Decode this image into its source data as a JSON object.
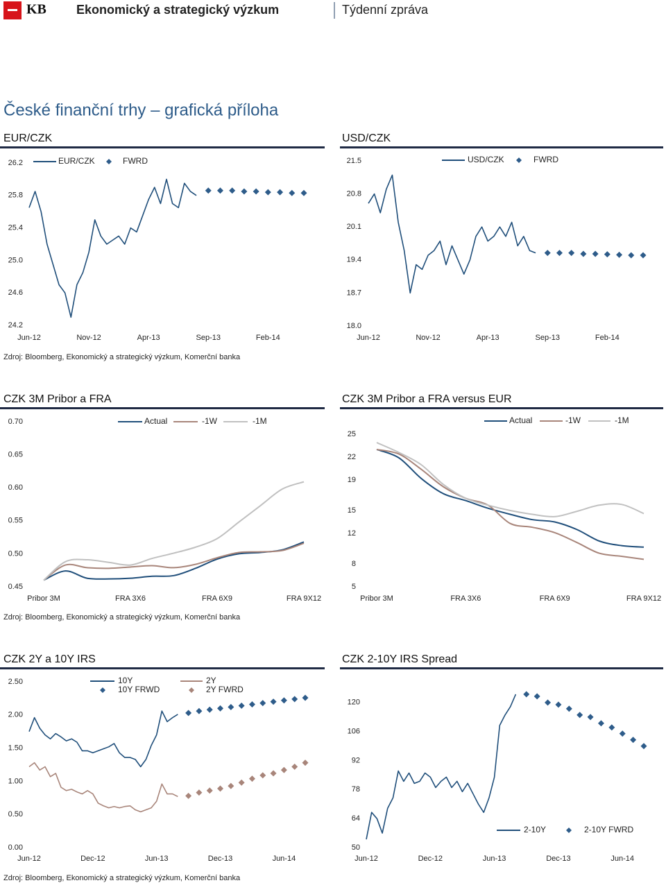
{
  "header": {
    "logo": "KB",
    "title": "Ekonomický a strategický výzkum",
    "report": "Týdenní zpráva"
  },
  "section_title": "České finanční trhy – grafická příloha",
  "sources": [
    "Zdroj: Bloomberg, Ekonomický a strategický výzkum, Komerční banka",
    "Zdroj: Bloomberg, Ekonomický a strategický výzkum, Komerční banka",
    "Zdroj: Bloomberg, Ekonomický a strategický výzkum, Komerční banka"
  ],
  "chart_data": [
    {
      "type": "line",
      "title": "EUR/CZK",
      "categories": [
        "Jun-12",
        null,
        null,
        null,
        null,
        null,
        null,
        null,
        null,
        null,
        "Nov-12",
        null,
        null,
        null,
        null,
        null,
        null,
        null,
        null,
        null,
        "Apr-13",
        null,
        null,
        null,
        null,
        null,
        null,
        null,
        null,
        null,
        "Sep-13",
        null,
        null,
        null,
        null,
        null,
        null,
        null,
        null,
        null,
        "Feb-14",
        null,
        null,
        null,
        null,
        null,
        null
      ],
      "ylim": [
        24.2,
        26.2
      ],
      "yticks": [
        24.2,
        24.6,
        {
          "value": 25,
          "label": "25.0"
        },
        25.4,
        25.8,
        26.2
      ],
      "series": [
        {
          "name": "EUR/CZK",
          "color": "#1f4e7a",
          "style": "line",
          "values": [
            25.65,
            25.85,
            25.6,
            25.2,
            24.95,
            24.7,
            24.6,
            24.3,
            24.7,
            24.85,
            25.1,
            25.5,
            25.3,
            25.2,
            25.25,
            25.3,
            25.2,
            25.4,
            25.35,
            25.55,
            25.75,
            25.9,
            25.7,
            26.0,
            25.7,
            25.65,
            25.95,
            25.85,
            25.8,
            null,
            null,
            null,
            null,
            null,
            null,
            null,
            null,
            null,
            null,
            null,
            null,
            null,
            null,
            null,
            null,
            null,
            null
          ]
        },
        {
          "name": "FWRD",
          "color": "#2e5c8a",
          "style": "marker",
          "values": [
            null,
            null,
            null,
            null,
            null,
            null,
            null,
            null,
            null,
            null,
            null,
            null,
            null,
            null,
            null,
            null,
            null,
            null,
            null,
            null,
            null,
            null,
            null,
            null,
            null,
            null,
            null,
            null,
            null,
            null,
            25.86,
            null,
            25.86,
            null,
            25.86,
            null,
            25.85,
            null,
            25.85,
            null,
            25.84,
            null,
            25.84,
            null,
            25.83,
            null,
            25.83
          ]
        }
      ]
    },
    {
      "type": "line",
      "title": "USD/CZK",
      "categories": [
        "Jun-12",
        null,
        null,
        null,
        null,
        null,
        null,
        null,
        null,
        null,
        "Nov-12",
        null,
        null,
        null,
        null,
        null,
        null,
        null,
        null,
        null,
        "Apr-13",
        null,
        null,
        null,
        null,
        null,
        null,
        null,
        null,
        null,
        "Sep-13",
        null,
        null,
        null,
        null,
        null,
        null,
        null,
        null,
        null,
        "Feb-14",
        null,
        null,
        null,
        null,
        null,
        null
      ],
      "ylim": [
        18,
        21.5
      ],
      "yticks": [
        {
          "value": 18,
          "label": "18.0"
        },
        18.7,
        19.4,
        20.1,
        20.8,
        21.5
      ],
      "series": [
        {
          "name": "USD/CZK",
          "color": "#1f4e7a",
          "style": "line",
          "values": [
            20.6,
            20.8,
            20.4,
            20.9,
            21.2,
            20.2,
            19.6,
            18.7,
            19.3,
            19.2,
            19.5,
            19.6,
            19.8,
            19.3,
            19.7,
            19.4,
            19.1,
            19.4,
            19.9,
            20.1,
            19.8,
            19.9,
            20.1,
            19.9,
            20.2,
            19.7,
            19.9,
            19.6,
            19.55,
            null,
            null,
            null,
            null,
            null,
            null,
            null,
            null,
            null,
            null,
            null,
            null,
            null,
            null,
            null,
            null,
            null,
            null
          ]
        },
        {
          "name": "FWRD",
          "color": "#2e5c8a",
          "style": "marker",
          "values": [
            null,
            null,
            null,
            null,
            null,
            null,
            null,
            null,
            null,
            null,
            null,
            null,
            null,
            null,
            null,
            null,
            null,
            null,
            null,
            null,
            null,
            null,
            null,
            null,
            null,
            null,
            null,
            null,
            null,
            null,
            19.55,
            null,
            19.55,
            null,
            19.55,
            null,
            19.53,
            null,
            19.53,
            null,
            19.52,
            null,
            19.51,
            null,
            19.5,
            null,
            19.5
          ]
        }
      ]
    },
    {
      "type": "line",
      "title": "CZK 3M Pribor a FRA",
      "smooth": true,
      "categories": [
        "Pribor 3M",
        null,
        null,
        null,
        "FRA 3X6",
        null,
        null,
        null,
        "FRA 6X9",
        null,
        null,
        null,
        "FRA 9X12"
      ],
      "ylim": [
        0.45,
        0.7
      ],
      "yticks": [
        0.45,
        {
          "value": 0.5,
          "label": "0.50"
        },
        0.55,
        {
          "value": 0.6,
          "label": "0.60"
        },
        0.65,
        {
          "value": 0.7,
          "label": "0.70"
        }
      ],
      "series": [
        {
          "name": "Actual",
          "color": "#1f4e7a",
          "style": "line",
          "values": [
            0.46,
            0.474,
            0.463,
            0.462,
            0.463,
            0.466,
            0.467,
            0.478,
            0.492,
            0.5,
            0.502,
            0.506,
            0.518
          ]
        },
        {
          "name": "-1W",
          "color": "#a8857a",
          "style": "line",
          "values": [
            0.46,
            0.483,
            0.479,
            0.478,
            0.48,
            0.482,
            0.479,
            0.484,
            0.494,
            0.502,
            0.503,
            0.505,
            0.516
          ]
        },
        {
          "name": "-1M",
          "color": "#c0c0c0",
          "style": "line",
          "values": [
            0.46,
            0.488,
            0.491,
            0.487,
            0.483,
            0.493,
            0.501,
            0.51,
            0.523,
            0.548,
            0.573,
            0.598,
            0.609
          ]
        }
      ]
    },
    {
      "type": "line",
      "title": "CZK 3M Pribor a FRA versus EUR",
      "smooth": true,
      "categories": [
        "Pribor 3M",
        null,
        null,
        null,
        "FRA 3X6",
        null,
        null,
        null,
        "FRA 6X9",
        null,
        null,
        null,
        "FRA 9X12"
      ],
      "ylim": [
        5,
        25
      ],
      "yticks": [
        5,
        8,
        12,
        15,
        19,
        22,
        25
      ],
      "series": [
        {
          "name": "Actual",
          "color": "#1f4e7a",
          "style": "line",
          "values": [
            23.0,
            21.9,
            19.2,
            17.2,
            16.3,
            15.3,
            14.5,
            13.8,
            13.5,
            12.5,
            11.0,
            10.4,
            10.2
          ]
        },
        {
          "name": "-1W",
          "color": "#a8857a",
          "style": "line",
          "values": [
            23.0,
            22.4,
            20.4,
            18.1,
            16.6,
            15.7,
            13.3,
            12.8,
            12.1,
            10.8,
            9.4,
            9.0,
            8.6
          ]
        },
        {
          "name": "-1M",
          "color": "#c0c0c0",
          "style": "line",
          "values": [
            23.9,
            22.6,
            21.0,
            18.4,
            16.6,
            15.7,
            15.0,
            14.5,
            14.2,
            14.9,
            15.7,
            15.8,
            14.6
          ]
        }
      ]
    },
    {
      "type": "line",
      "title": "CZK 2Y a 10Y IRS",
      "categories": [
        "Jun-12",
        null,
        null,
        null,
        null,
        null,
        null,
        null,
        null,
        null,
        null,
        null,
        "Dec-12",
        null,
        null,
        null,
        null,
        null,
        null,
        null,
        null,
        null,
        null,
        null,
        "Jun-13",
        null,
        null,
        null,
        null,
        null,
        null,
        null,
        null,
        null,
        null,
        null,
        "Dec-13",
        null,
        null,
        null,
        null,
        null,
        null,
        null,
        null,
        null,
        null,
        null,
        "Jun-14",
        null,
        null,
        null,
        null
      ],
      "ylim": [
        0,
        2.5
      ],
      "yticks": [
        {
          "value": 0,
          "label": "0.00"
        },
        {
          "value": 0.5,
          "label": "0.50"
        },
        {
          "value": 1,
          "label": "1.00"
        },
        {
          "value": 1.5,
          "label": "1.50"
        },
        {
          "value": 2,
          "label": "2.00"
        },
        {
          "value": 2.5,
          "label": "2.50"
        }
      ],
      "series": [
        {
          "name": "10Y",
          "color": "#1f4e7a",
          "style": "line",
          "values": [
            1.75,
            1.96,
            1.8,
            1.7,
            1.64,
            1.72,
            1.67,
            1.61,
            1.64,
            1.59,
            1.46,
            1.46,
            1.43,
            1.46,
            1.49,
            1.52,
            1.57,
            1.43,
            1.36,
            1.36,
            1.33,
            1.22,
            1.33,
            1.54,
            1.7,
            2.06,
            1.9,
            1.96,
            2.01,
            null,
            null,
            null,
            null,
            null,
            null,
            null,
            null,
            null,
            null,
            null,
            null,
            null,
            null,
            null,
            null,
            null,
            null,
            null,
            null,
            null,
            null,
            null,
            null
          ]
        },
        {
          "name": "10Y FRWD",
          "color": "#2e5c8a",
          "style": "marker",
          "values": [
            null,
            null,
            null,
            null,
            null,
            null,
            null,
            null,
            null,
            null,
            null,
            null,
            null,
            null,
            null,
            null,
            null,
            null,
            null,
            null,
            null,
            null,
            null,
            null,
            null,
            null,
            null,
            null,
            null,
            null,
            2.03,
            null,
            2.06,
            null,
            2.08,
            null,
            2.1,
            null,
            2.12,
            null,
            2.14,
            null,
            2.16,
            null,
            2.18,
            null,
            2.2,
            null,
            2.22,
            null,
            2.24,
            null,
            2.26
          ]
        },
        {
          "name": "2Y",
          "color": "#a8857a",
          "style": "line",
          "values": [
            1.22,
            1.28,
            1.17,
            1.22,
            1.07,
            1.12,
            0.91,
            0.86,
            0.88,
            0.84,
            0.81,
            0.86,
            0.81,
            0.67,
            0.63,
            0.6,
            0.62,
            0.6,
            0.62,
            0.63,
            0.57,
            0.54,
            0.57,
            0.6,
            0.7,
            0.96,
            0.81,
            0.81,
            0.77,
            null,
            null,
            null,
            null,
            null,
            null,
            null,
            null,
            null,
            null,
            null,
            null,
            null,
            null,
            null,
            null,
            null,
            null,
            null,
            null,
            null,
            null,
            null,
            null
          ]
        },
        {
          "name": "2Y FWRD",
          "color": "#a8857a",
          "style": "marker",
          "values": [
            null,
            null,
            null,
            null,
            null,
            null,
            null,
            null,
            null,
            null,
            null,
            null,
            null,
            null,
            null,
            null,
            null,
            null,
            null,
            null,
            null,
            null,
            null,
            null,
            null,
            null,
            null,
            null,
            null,
            null,
            0.78,
            null,
            0.83,
            null,
            0.86,
            null,
            0.89,
            null,
            0.93,
            null,
            0.98,
            null,
            1.04,
            null,
            1.09,
            null,
            1.12,
            null,
            1.17,
            null,
            1.22,
            null,
            1.28
          ]
        }
      ]
    },
    {
      "type": "line",
      "title": "CZK 2-10Y IRS Spread",
      "categories": [
        "Jun-12",
        null,
        null,
        null,
        null,
        null,
        null,
        null,
        null,
        null,
        null,
        null,
        "Dec-12",
        null,
        null,
        null,
        null,
        null,
        null,
        null,
        null,
        null,
        null,
        null,
        "Jun-13",
        null,
        null,
        null,
        null,
        null,
        null,
        null,
        null,
        null,
        null,
        null,
        "Dec-13",
        null,
        null,
        null,
        null,
        null,
        null,
        null,
        null,
        null,
        null,
        null,
        "Jun-14",
        null,
        null,
        null,
        null
      ],
      "ylim": [
        50,
        134
      ],
      "yticks": [
        50,
        64,
        78,
        92,
        106,
        120
      ],
      "series": [
        {
          "name": "2-10Y",
          "color": "#1f4e7a",
          "style": "line",
          "values": [
            54,
            67,
            64,
            57,
            69,
            74,
            87,
            82,
            86,
            81,
            82,
            86,
            84,
            79,
            82,
            84,
            79,
            82,
            77,
            81,
            76,
            71,
            67,
            74,
            84,
            109,
            114,
            118,
            124,
            null,
            null,
            null,
            null,
            null,
            null,
            null,
            null,
            null,
            null,
            null,
            null,
            null,
            null,
            null,
            null,
            null,
            null,
            null,
            null,
            null,
            null,
            null,
            null
          ]
        },
        {
          "name": "2-10Y FWRD",
          "color": "#2e5c8a",
          "style": "marker",
          "values": [
            null,
            null,
            null,
            null,
            null,
            null,
            null,
            null,
            null,
            null,
            null,
            null,
            null,
            null,
            null,
            null,
            null,
            null,
            null,
            null,
            null,
            null,
            null,
            null,
            null,
            null,
            null,
            null,
            null,
            null,
            124,
            null,
            123,
            null,
            120,
            null,
            119,
            null,
            117,
            null,
            114,
            null,
            113,
            null,
            110,
            null,
            108,
            null,
            105,
            null,
            102,
            null,
            99
          ]
        }
      ]
    }
  ]
}
